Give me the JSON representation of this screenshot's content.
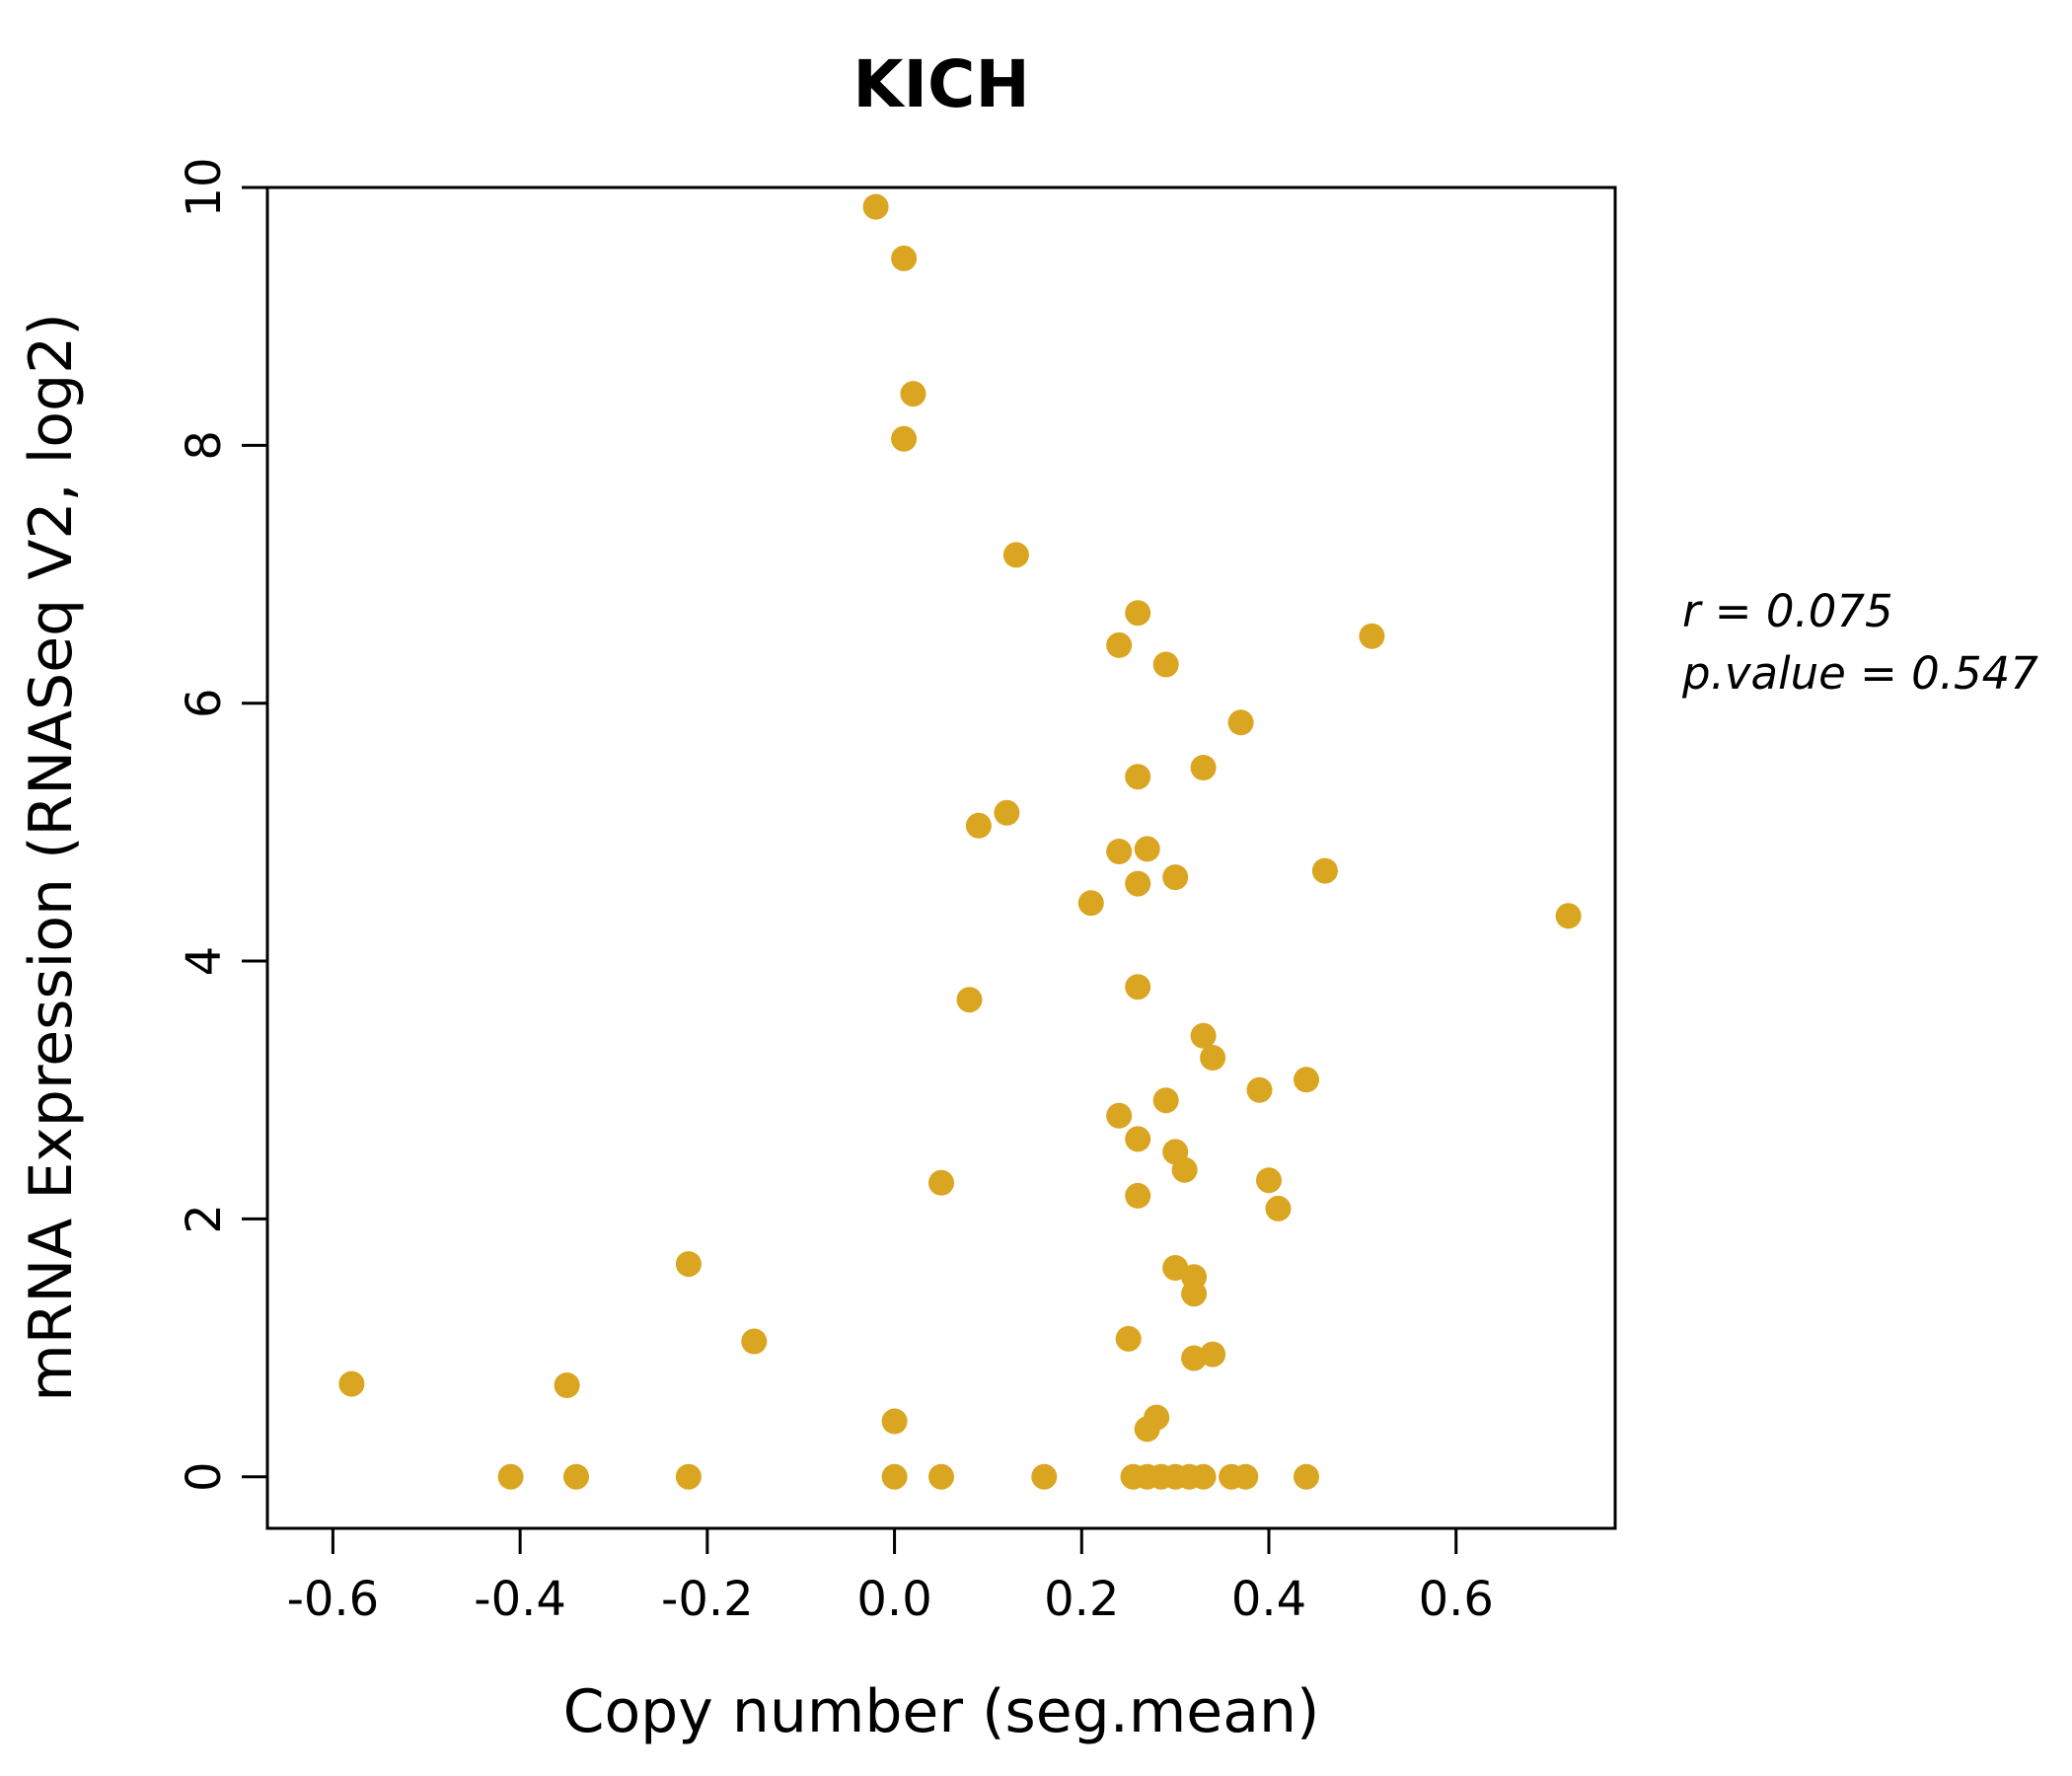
{
  "chart_data": {
    "type": "scatter",
    "title": "KICH",
    "xlabel": "Copy number (seg.mean)",
    "ylabel": "mRNA Expression (RNASeq V2, log2)",
    "xlim": [
      -0.67,
      0.77
    ],
    "ylim": [
      -0.4,
      10.0
    ],
    "x_ticks": [
      {
        "value": -0.6,
        "label": "-0.6"
      },
      {
        "value": -0.4,
        "label": "-0.4"
      },
      {
        "value": -0.2,
        "label": "-0.2"
      },
      {
        "value": 0.0,
        "label": "0.0"
      },
      {
        "value": 0.2,
        "label": "0.2"
      },
      {
        "value": 0.4,
        "label": "0.4"
      },
      {
        "value": 0.6,
        "label": "0.6"
      }
    ],
    "y_ticks": [
      {
        "value": 0,
        "label": "0"
      },
      {
        "value": 2,
        "label": "2"
      },
      {
        "value": 4,
        "label": "4"
      },
      {
        "value": 6,
        "label": "6"
      },
      {
        "value": 8,
        "label": "8"
      },
      {
        "value": 10,
        "label": "10"
      }
    ],
    "grid": false,
    "legend": "none",
    "title_color": "#DAA520",
    "point_color": "#DAA520",
    "annotation": {
      "line1": "r = 0.075",
      "line2": "p.value = 0.547"
    },
    "points": [
      [
        -0.02,
        9.85
      ],
      [
        0.01,
        9.45
      ],
      [
        0.02,
        8.4
      ],
      [
        0.01,
        8.05
      ],
      [
        0.13,
        7.15
      ],
      [
        0.26,
        6.7
      ],
      [
        0.24,
        6.45
      ],
      [
        0.29,
        6.3
      ],
      [
        0.51,
        6.52
      ],
      [
        0.37,
        5.85
      ],
      [
        0.33,
        5.5
      ],
      [
        0.26,
        5.43
      ],
      [
        0.12,
        5.15
      ],
      [
        0.09,
        5.05
      ],
      [
        0.24,
        4.85
      ],
      [
        0.27,
        4.87
      ],
      [
        0.26,
        4.6
      ],
      [
        0.3,
        4.65
      ],
      [
        0.21,
        4.45
      ],
      [
        0.46,
        4.7
      ],
      [
        0.72,
        4.35
      ],
      [
        0.26,
        3.8
      ],
      [
        0.08,
        3.7
      ],
      [
        0.33,
        3.42
      ],
      [
        0.34,
        3.25
      ],
      [
        0.39,
        3.0
      ],
      [
        0.44,
        3.08
      ],
      [
        0.29,
        2.92
      ],
      [
        0.24,
        2.8
      ],
      [
        0.26,
        2.62
      ],
      [
        0.3,
        2.52
      ],
      [
        0.31,
        2.38
      ],
      [
        0.05,
        2.28
      ],
      [
        0.26,
        2.18
      ],
      [
        0.4,
        2.3
      ],
      [
        0.41,
        2.08
      ],
      [
        -0.22,
        1.65
      ],
      [
        0.3,
        1.62
      ],
      [
        0.32,
        1.55
      ],
      [
        0.32,
        1.42
      ],
      [
        0.25,
        1.07
      ],
      [
        -0.15,
        1.05
      ],
      [
        0.32,
        0.92
      ],
      [
        0.34,
        0.95
      ],
      [
        -0.58,
        0.72
      ],
      [
        -0.35,
        0.71
      ],
      [
        0.28,
        0.46
      ],
      [
        0.27,
        0.37
      ],
      [
        0.0,
        0.43
      ],
      [
        -0.41,
        0.0
      ],
      [
        -0.34,
        0.0
      ],
      [
        -0.22,
        0.0
      ],
      [
        0.0,
        0.0
      ],
      [
        0.05,
        0.0
      ],
      [
        0.16,
        0.0
      ],
      [
        0.255,
        0.0
      ],
      [
        0.27,
        0.0
      ],
      [
        0.285,
        0.0
      ],
      [
        0.3,
        0.0
      ],
      [
        0.315,
        0.0
      ],
      [
        0.33,
        0.0
      ],
      [
        0.36,
        0.0
      ],
      [
        0.375,
        0.0
      ],
      [
        0.44,
        0.0
      ]
    ]
  }
}
